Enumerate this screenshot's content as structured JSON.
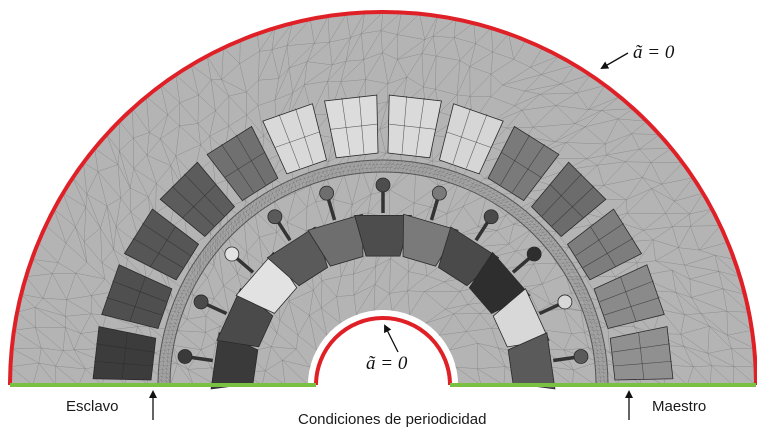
{
  "labels": {
    "boundary_outer": "ã = 0",
    "boundary_inner": "ã = 0",
    "slave": "Esclavo",
    "master": "Maestro",
    "periodicity": "Condiciones de periodicidad"
  },
  "colors": {
    "domain_fill": "#b4b4b4",
    "airgap_fill": "#a9a9a9",
    "dirichlet_boundary": "#e02027",
    "periodic_boundary": "#7ac143"
  },
  "stator_coil_shades": [
    "#3c3c3c",
    "#4f4f4f",
    "#565656",
    "#5c5c5c",
    "#707070",
    "#d9d9d9",
    "#dcdcdc",
    "#dadada",
    "#d6d6d6",
    "#7a7a7a",
    "#6c6c6c",
    "#7d7d7d",
    "#8a8a8a",
    "#909090"
  ],
  "rotor_bar_shades": [
    "#3a3a3a",
    "#4a4a4a",
    "#e2e2e2",
    "#5a5a5a",
    "#6e6e6e",
    "#4d4d4d",
    "#7a7a7a",
    "#4a4a4a",
    "#2e2e2e",
    "#d8d8d8",
    "#5a5a5a"
  ]
}
